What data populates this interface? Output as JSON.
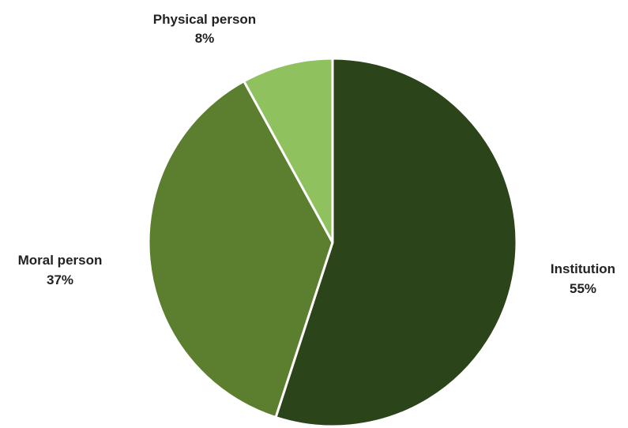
{
  "chart_data": {
    "type": "pie",
    "title": "",
    "slices": [
      {
        "label": "Institution",
        "value": 55,
        "value_label": "55%",
        "color": "#2b4419"
      },
      {
        "label": "Moral person",
        "value": 37,
        "value_label": "37%",
        "color": "#5c7f2f"
      },
      {
        "label": "Physical person",
        "value": 8,
        "value_label": "8%",
        "color": "#8fc15e"
      }
    ],
    "start_angle": "12 o'clock",
    "direction": "clockwise",
    "slice_separator_color": "#ffffff",
    "legend": "none"
  }
}
